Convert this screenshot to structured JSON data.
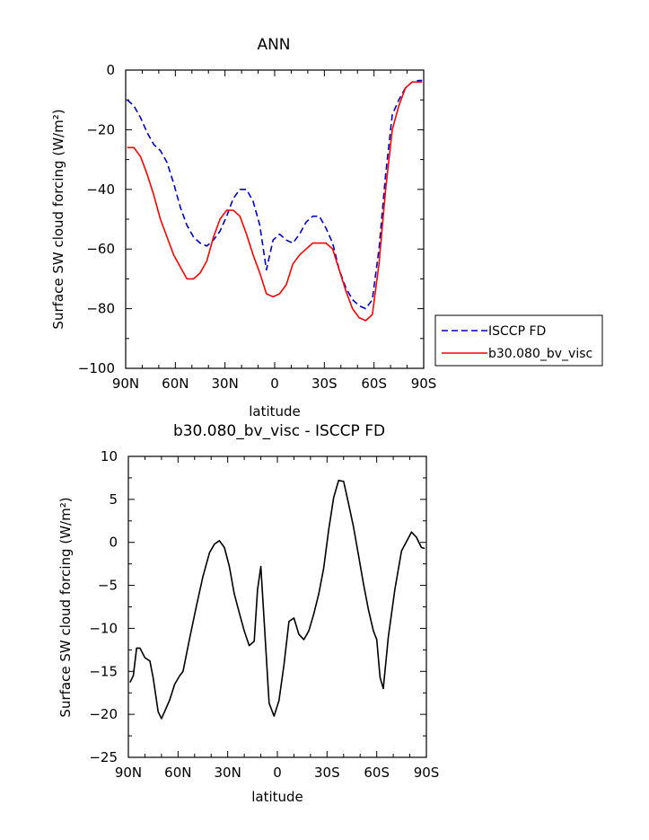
{
  "chart_data": [
    {
      "type": "line",
      "title": "ANN",
      "xlabel": "latitude",
      "ylabel": "Surface SW cloud forcing (W/m²)",
      "xlim": [
        90,
        -90
      ],
      "ylim": [
        -100,
        0
      ],
      "xticks": [
        {
          "value": 90,
          "label": "90N"
        },
        {
          "value": 60,
          "label": "60N"
        },
        {
          "value": 30,
          "label": "30N"
        },
        {
          "value": 0,
          "label": "0"
        },
        {
          "value": -30,
          "label": "30S"
        },
        {
          "value": -60,
          "label": "60S"
        },
        {
          "value": -90,
          "label": "90S"
        }
      ],
      "yticks": [
        0,
        -20,
        -40,
        -60,
        -80,
        -100
      ],
      "legend_position": "right",
      "series": [
        {
          "name": "ISCCP FD",
          "color": "#0000cc",
          "dash": "dashed",
          "x": [
            89,
            85,
            81,
            77,
            73,
            69,
            65,
            61,
            57,
            53,
            49,
            45,
            41,
            37,
            33,
            29,
            25,
            21,
            17,
            13,
            9,
            5,
            1,
            -3,
            -7,
            -11,
            -15,
            -19,
            -23,
            -27,
            -31,
            -35,
            -39,
            -43,
            -47,
            -51,
            -55,
            -59,
            -63,
            -67,
            -71,
            -75,
            -79,
            -83,
            -87,
            -89
          ],
          "y": [
            -10,
            -12,
            -16,
            -21,
            -25,
            -27,
            -31,
            -38,
            -46,
            -52,
            -56,
            -58,
            -59,
            -57,
            -54,
            -49,
            -43,
            -40,
            -40,
            -44,
            -52,
            -67,
            -57,
            -55,
            -57,
            -58,
            -55,
            -51,
            -49,
            -49,
            -53,
            -58,
            -67,
            -73,
            -77,
            -79,
            -80,
            -77,
            -60,
            -35,
            -15,
            -10,
            -6,
            -4,
            -3.5,
            -3.5
          ]
        },
        {
          "name": "b30.080_bv_visc",
          "color": "#ff0000",
          "dash": "solid",
          "x": [
            89,
            85,
            81,
            77,
            73,
            69,
            65,
            61,
            57,
            53,
            49,
            45,
            41,
            37,
            33,
            29,
            25,
            21,
            17,
            13,
            9,
            5,
            1,
            -3,
            -7,
            -11,
            -15,
            -19,
            -23,
            -27,
            -31,
            -35,
            -39,
            -43,
            -47,
            -51,
            -55,
            -59,
            -63,
            -67,
            -71,
            -75,
            -79,
            -83,
            -87,
            -89
          ],
          "y": [
            -26,
            -26,
            -29,
            -35,
            -42,
            -50,
            -56,
            -62,
            -66,
            -70,
            -70,
            -68,
            -64,
            -56,
            -50,
            -47,
            -47,
            -49,
            -55,
            -62,
            -68,
            -75,
            -76,
            -75,
            -72,
            -65,
            -62,
            -60,
            -58,
            -58,
            -58,
            -60,
            -67,
            -74,
            -80,
            -83,
            -84,
            -82,
            -65,
            -40,
            -20,
            -12,
            -6,
            -4,
            -4,
            -4
          ]
        }
      ]
    },
    {
      "type": "line",
      "title": "b30.080_bv_visc - ISCCP FD",
      "xlabel": "latitude",
      "ylabel": "Surface SW cloud forcing (W/m²)",
      "xlim": [
        90,
        -90
      ],
      "ylim": [
        -25,
        10
      ],
      "xticks": [
        {
          "value": 90,
          "label": "90N"
        },
        {
          "value": 60,
          "label": "60N"
        },
        {
          "value": 30,
          "label": "30N"
        },
        {
          "value": 0,
          "label": "0"
        },
        {
          "value": -30,
          "label": "30S"
        },
        {
          "value": -60,
          "label": "60S"
        },
        {
          "value": -90,
          "label": "90S"
        }
      ],
      "yticks": [
        10,
        5,
        0,
        -5,
        -10,
        -15,
        -20,
        -25
      ],
      "series": [
        {
          "color": "#000000",
          "dash": "solid",
          "x": [
            89,
            87,
            85,
            83,
            80,
            77,
            75,
            72,
            70,
            67,
            65,
            62,
            59,
            57,
            53,
            49,
            45,
            41,
            38,
            35,
            32,
            29,
            26,
            23,
            20,
            17,
            14,
            12,
            10,
            8,
            5,
            2,
            -1,
            -4,
            -7,
            -10,
            -13,
            -16,
            -19,
            -22,
            -25,
            -28,
            -31,
            -34,
            -37,
            -40,
            -43,
            -46,
            -49,
            -52,
            -55,
            -58,
            -60,
            -62,
            -64,
            -67,
            -71,
            -75,
            -78,
            -81,
            -84,
            -87,
            -89
          ],
          "y": [
            -16.3,
            -15.5,
            -12.3,
            -12.3,
            -13.4,
            -13.8,
            -15.8,
            -19.7,
            -20.5,
            -19.2,
            -18.3,
            -16.5,
            -15.5,
            -15,
            -11.2,
            -7.5,
            -4,
            -1.2,
            -0.2,
            0.2,
            -0.6,
            -2.8,
            -6,
            -8.2,
            -10.3,
            -12,
            -11.5,
            -5.5,
            -2.8,
            -9,
            -18.7,
            -20.2,
            -18.4,
            -14.2,
            -9.2,
            -8.8,
            -10.7,
            -11.3,
            -10.3,
            -8.3,
            -6,
            -3,
            1.5,
            5.2,
            7.2,
            7.1,
            4.5,
            1.8,
            -1.5,
            -4.8,
            -7.8,
            -10.3,
            -11.3,
            -15.7,
            -17,
            -11,
            -5.4,
            -1,
            0.1,
            1.2,
            0.6,
            -0.6,
            -0.7
          ]
        }
      ]
    }
  ]
}
